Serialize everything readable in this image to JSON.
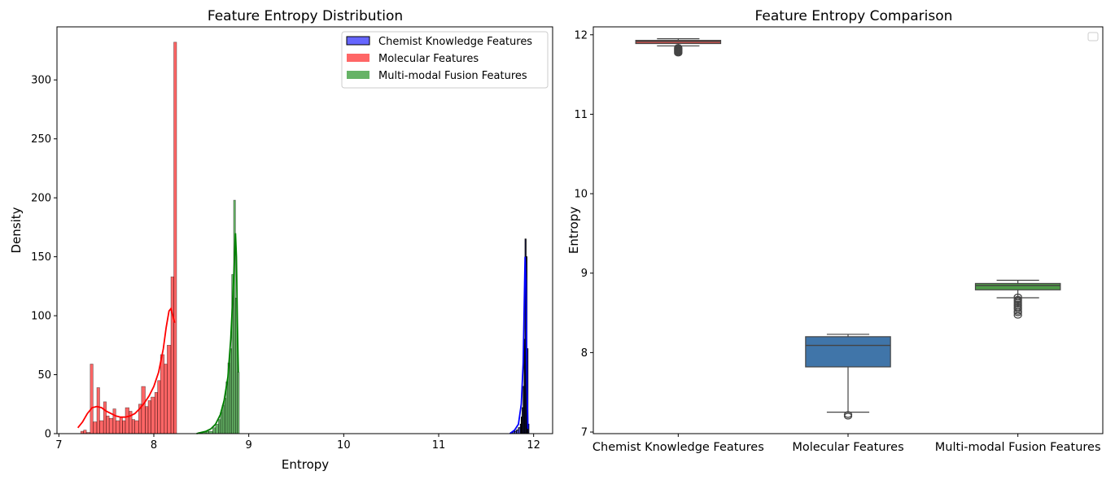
{
  "chart_data": [
    {
      "type": "histogram",
      "title": "Feature Entropy Distribution",
      "xlabel": "Entropy",
      "ylabel": "Density",
      "xlim": [
        6.98,
        12.2
      ],
      "ylim": [
        0,
        345
      ],
      "xticks": [
        "7",
        "8",
        "9",
        "10",
        "11",
        "12"
      ],
      "yticks": [
        "0",
        "50",
        "100",
        "150",
        "200",
        "250",
        "300"
      ],
      "legend_position": "top-right",
      "grid": false,
      "series": [
        {
          "name": "Chemist Knowledge Features",
          "color": "#0000ff",
          "edge_color": "#000000",
          "bins_x": [
            11.76,
            11.78,
            11.8,
            11.82,
            11.84,
            11.86,
            11.87,
            11.88,
            11.89,
            11.9,
            11.91,
            11.92,
            11.93,
            11.94
          ],
          "counts": [
            1,
            2,
            2,
            3,
            5,
            8,
            14,
            22,
            40,
            80,
            165,
            150,
            72,
            8
          ],
          "kde_x": [
            11.75,
            11.8,
            11.84,
            11.87,
            11.89,
            11.9,
            11.91,
            11.92,
            11.93,
            11.94
          ],
          "kde_y": [
            0,
            3,
            8,
            25,
            60,
            105,
            150,
            130,
            40,
            4
          ]
        },
        {
          "name": "Molecular Features",
          "color": "#ff0000",
          "bins_x": [
            7.23,
            7.26,
            7.29,
            7.33,
            7.36,
            7.4,
            7.43,
            7.47,
            7.5,
            7.53,
            7.57,
            7.6,
            7.64,
            7.67,
            7.7,
            7.74,
            7.77,
            7.8,
            7.84,
            7.87,
            7.91,
            7.94,
            7.97,
            8.01,
            8.04,
            8.07,
            8.11,
            8.14,
            8.18,
            8.21
          ],
          "counts": [
            2,
            3,
            1,
            59,
            10,
            39,
            11,
            27,
            15,
            13,
            21,
            11,
            14,
            11,
            22,
            19,
            12,
            11,
            25,
            40,
            23,
            28,
            31,
            35,
            45,
            67,
            59,
            75,
            133,
            332
          ],
          "kde_x": [
            7.2,
            7.25,
            7.3,
            7.35,
            7.4,
            7.45,
            7.5,
            7.55,
            7.6,
            7.65,
            7.7,
            7.75,
            7.8,
            7.85,
            7.9,
            7.95,
            8.0,
            8.05,
            8.1,
            8.13,
            8.16,
            8.18,
            8.2,
            8.22
          ],
          "kde_y": [
            5,
            10,
            17,
            22,
            23,
            22,
            19,
            17,
            15,
            14,
            14,
            15,
            17,
            21,
            26,
            32,
            40,
            52,
            72,
            90,
            104,
            106,
            100,
            94
          ]
        },
        {
          "name": "Multi-modal Fusion Features",
          "color": "#008000",
          "bins_x": [
            8.47,
            8.51,
            8.55,
            8.58,
            8.62,
            8.65,
            8.68,
            8.7,
            8.72,
            8.74,
            8.76,
            8.78,
            8.8,
            8.82,
            8.84,
            8.86,
            8.88
          ],
          "counts": [
            1,
            1,
            2,
            2,
            5,
            8,
            12,
            18,
            24,
            30,
            44,
            60,
            72,
            135,
            198,
            115,
            52
          ],
          "kde_x": [
            8.45,
            8.5,
            8.55,
            8.6,
            8.65,
            8.7,
            8.74,
            8.78,
            8.81,
            8.84,
            8.86,
            8.87,
            8.88,
            8.89
          ],
          "kde_y": [
            0,
            1,
            2,
            4,
            8,
            16,
            28,
            48,
            80,
            130,
            170,
            150,
            95,
            52
          ]
        }
      ]
    },
    {
      "type": "box",
      "title": "Feature Entropy Comparison",
      "xlabel": "",
      "ylabel": "Entropy",
      "ylim": [
        6.98,
        12.1
      ],
      "yticks": [
        "7",
        "8",
        "9",
        "10",
        "11",
        "12"
      ],
      "categories": [
        "Chemist Knowledge Features",
        "Molecular Features",
        "Multi-modal Fusion Features"
      ],
      "legend_position": "top-right",
      "grid": false,
      "boxes": [
        {
          "category": "Chemist Knowledge Features",
          "color": "#d9534f",
          "whisker_low": 11.86,
          "q1": 11.89,
          "median": 11.915,
          "q3": 11.93,
          "whisker_high": 11.95,
          "outliers": [
            11.84,
            11.83,
            11.82,
            11.81,
            11.8,
            11.79,
            11.78,
            11.77
          ]
        },
        {
          "category": "Molecular Features",
          "color": "#4075a9",
          "whisker_low": 7.25,
          "q1": 7.82,
          "median": 8.09,
          "q3": 8.2,
          "whisker_high": 8.23,
          "outliers": [
            7.22,
            7.2
          ]
        },
        {
          "category": "Multi-modal Fusion Features",
          "color": "#4e9a47",
          "whisker_low": 8.69,
          "q1": 8.79,
          "median": 8.845,
          "q3": 8.87,
          "whisker_high": 8.91,
          "outliers": [
            8.7,
            8.67,
            8.65,
            8.63,
            8.61,
            8.59,
            8.57,
            8.55,
            8.52,
            8.5,
            8.47
          ]
        }
      ]
    }
  ]
}
